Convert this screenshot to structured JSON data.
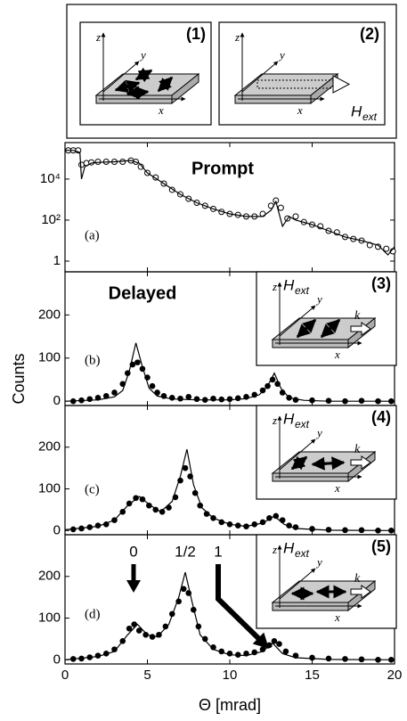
{
  "ylabel": "Counts",
  "insets": [
    {
      "label": "(1)",
      "z": "z",
      "y": "y",
      "x": "x"
    },
    {
      "label": "(2)",
      "z": "z",
      "y": "y",
      "x": "x",
      "field": "H",
      "field_sub": "ext"
    },
    {
      "label": "(3)",
      "z": "z",
      "y": "y",
      "x": "x",
      "field": "H",
      "field_sub": "ext",
      "k": "k"
    },
    {
      "label": "(4)",
      "z": "z",
      "y": "y",
      "x": "x",
      "field": "H",
      "field_sub": "ext",
      "k": "k"
    },
    {
      "label": "(5)",
      "z": "z",
      "y": "y",
      "x": "x",
      "field": "H",
      "field_sub": "ext",
      "k": "k"
    }
  ],
  "chart_data": [
    {
      "type": "scatter",
      "annotation": "Prompt",
      "label": "(a)",
      "log": true,
      "xlim": [
        0,
        20
      ],
      "xticks": [
        0,
        5,
        10,
        15,
        20
      ],
      "ylim": [
        0.3,
        600000
      ],
      "yticks": [
        1,
        {
          "value": 100,
          "label": "10²"
        },
        {
          "value": 10000,
          "label": "10⁴"
        }
      ],
      "series": [
        {
          "kind": "open-circle",
          "color": "#000000",
          "x": [
            0.2,
            0.5,
            0.8,
            1.0,
            1.3,
            1.6,
            2.0,
            2.5,
            3.0,
            3.5,
            4.0,
            4.3,
            4.6,
            5.0,
            5.5,
            6.0,
            6.5,
            7.0,
            7.5,
            8.0,
            8.5,
            9.0,
            9.5,
            10.0,
            10.5,
            11.0,
            11.5,
            12.0,
            12.5,
            12.8,
            13.1,
            13.5,
            14.0,
            14.5,
            15.0,
            15.5,
            16.0,
            16.5,
            17.0,
            17.5,
            18.0,
            18.5,
            19.0,
            19.5,
            19.9
          ],
          "values": [
            250000,
            250000,
            250000,
            50000,
            60000,
            65000,
            70000,
            70000,
            70000,
            70000,
            80000,
            70000,
            40000,
            20000,
            12000,
            6000,
            3000,
            1800,
            1100,
            700,
            500,
            350,
            250,
            200,
            180,
            150,
            150,
            200,
            500,
            900,
            400,
            120,
            150,
            80,
            60,
            50,
            30,
            25,
            15,
            12,
            10,
            6,
            5,
            4,
            3
          ]
        },
        {
          "kind": "line",
          "color": "#000000",
          "x": [
            0,
            0.5,
            0.9,
            1.0,
            1.2,
            1.6,
            2,
            3,
            4,
            4.5,
            5,
            6,
            7,
            8,
            9,
            10,
            11,
            12,
            12.5,
            12.8,
            13.2,
            13.6,
            14,
            15,
            16,
            17,
            18,
            19,
            19.6,
            20
          ],
          "values": [
            250000,
            250000,
            200000,
            10000,
            40000,
            60000,
            65000,
            70000,
            80000,
            60000,
            20000,
            6000,
            1800,
            700,
            350,
            200,
            150,
            150,
            300,
            800,
            50,
            150,
            100,
            60,
            30,
            15,
            10,
            6,
            2,
            5
          ]
        }
      ]
    },
    {
      "type": "scatter",
      "annotation": "Delayed",
      "label": "(b)",
      "xlim": [
        0,
        20
      ],
      "xticks": [
        0,
        5,
        10,
        15,
        20
      ],
      "ylim": [
        -10,
        300
      ],
      "yticks": [
        0,
        100,
        200
      ],
      "series": [
        {
          "kind": "filled-circle",
          "color": "#000000",
          "x": [
            0.5,
            1,
            1.5,
            2,
            2.5,
            3,
            3.5,
            3.8,
            4.1,
            4.4,
            4.7,
            5,
            5.3,
            5.6,
            6,
            6.5,
            7,
            7.5,
            8,
            8.5,
            9,
            9.5,
            10,
            10.5,
            11,
            11.5,
            12,
            12.3,
            12.6,
            12.9,
            13.2,
            13.6,
            14,
            15,
            16,
            17,
            18,
            19,
            19.8
          ],
          "values": [
            0,
            2,
            5,
            8,
            12,
            20,
            40,
            65,
            85,
            90,
            75,
            55,
            35,
            20,
            12,
            8,
            6,
            10,
            5,
            3,
            6,
            4,
            5,
            7,
            10,
            15,
            25,
            35,
            50,
            40,
            20,
            8,
            3,
            2,
            1,
            0,
            1,
            0,
            0
          ]
        },
        {
          "kind": "line",
          "color": "#000000",
          "x": [
            0,
            2,
            3,
            3.5,
            3.9,
            4.3,
            4.7,
            5.1,
            5.6,
            6.5,
            8,
            10,
            11,
            11.8,
            12.3,
            12.7,
            13.1,
            13.6,
            14.5,
            16,
            20
          ],
          "values": [
            0,
            3,
            10,
            25,
            70,
            135,
            80,
            30,
            12,
            5,
            3,
            3,
            6,
            15,
            35,
            65,
            30,
            8,
            2,
            0,
            0
          ]
        }
      ]
    },
    {
      "type": "scatter",
      "label": "(c)",
      "xlim": [
        0,
        20
      ],
      "xticks": [
        0,
        5,
        10,
        15,
        20
      ],
      "ylim": [
        -10,
        300
      ],
      "yticks": [
        0,
        100,
        200
      ],
      "series": [
        {
          "kind": "filled-circle",
          "color": "#000000",
          "x": [
            0.5,
            1,
            1.5,
            2,
            2.5,
            3,
            3.5,
            3.9,
            4.3,
            4.7,
            5.1,
            5.5,
            5.9,
            6.3,
            6.7,
            7,
            7.3,
            7.6,
            7.9,
            8.2,
            8.6,
            9,
            9.5,
            10,
            10.5,
            11,
            11.5,
            12,
            12.4,
            12.8,
            13.2,
            13.6,
            14,
            15,
            16,
            17,
            18,
            19,
            19.8
          ],
          "values": [
            3,
            5,
            8,
            12,
            15,
            25,
            45,
            65,
            78,
            75,
            60,
            50,
            45,
            55,
            80,
            120,
            150,
            130,
            90,
            60,
            40,
            30,
            20,
            15,
            12,
            10,
            15,
            20,
            30,
            35,
            25,
            12,
            8,
            4,
            2,
            1,
            1,
            0,
            0
          ]
        },
        {
          "kind": "line",
          "color": "#000000",
          "x": [
            0,
            2,
            3,
            3.8,
            4.5,
            5.2,
            5.8,
            6.5,
            7,
            7.4,
            7.8,
            8.3,
            9,
            10,
            11,
            12,
            12.7,
            13.3,
            14,
            16,
            20
          ],
          "values": [
            2,
            10,
            25,
            60,
            82,
            60,
            45,
            70,
            130,
            195,
            110,
            55,
            30,
            15,
            10,
            18,
            35,
            15,
            5,
            1,
            0
          ]
        }
      ]
    },
    {
      "type": "scatter",
      "label": "(d)",
      "annotations": [
        "0",
        "1/2",
        "1"
      ],
      "xlabel": "Θ [mrad]",
      "xlim": [
        0,
        20
      ],
      "xticks": [
        0,
        5,
        10,
        15,
        20
      ],
      "ylim": [
        -10,
        300
      ],
      "yticks": [
        0,
        100,
        200
      ],
      "series": [
        {
          "kind": "filled-circle",
          "color": "#000000",
          "x": [
            0.5,
            1,
            1.5,
            2,
            2.5,
            3,
            3.5,
            3.9,
            4.2,
            4.5,
            4.9,
            5.3,
            5.7,
            6.1,
            6.5,
            6.9,
            7.2,
            7.5,
            7.8,
            8.1,
            8.5,
            9,
            9.5,
            10,
            10.5,
            11,
            11.5,
            12,
            12.4,
            12.7,
            13,
            13.4,
            14,
            15,
            16,
            17,
            18,
            19,
            19.8
          ],
          "values": [
            2,
            3,
            6,
            10,
            15,
            25,
            45,
            75,
            85,
            70,
            60,
            55,
            60,
            80,
            110,
            140,
            170,
            160,
            120,
            80,
            50,
            30,
            20,
            15,
            12,
            15,
            18,
            25,
            35,
            45,
            38,
            20,
            10,
            5,
            3,
            2,
            1,
            0,
            0
          ]
        },
        {
          "kind": "line",
          "color": "#000000",
          "x": [
            0,
            2,
            3,
            3.8,
            4.4,
            5,
            5.6,
            6.3,
            6.9,
            7.3,
            7.7,
            8.2,
            9,
            10,
            11,
            12,
            12.6,
            13.2,
            14,
            16,
            20
          ],
          "values": [
            0,
            8,
            20,
            60,
            85,
            60,
            55,
            85,
            150,
            210,
            140,
            60,
            25,
            12,
            10,
            20,
            40,
            15,
            5,
            1,
            0
          ]
        }
      ]
    }
  ]
}
